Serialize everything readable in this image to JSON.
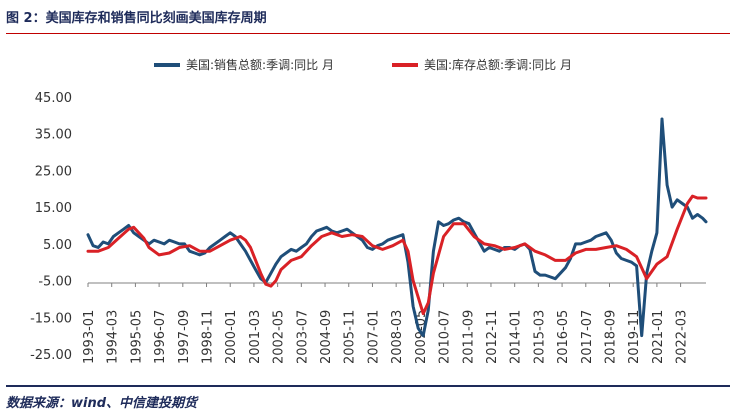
{
  "figure": {
    "title": "图 2：美国库存和销售同比刻画美国库存周期",
    "source": "数据来源：wind、中信建投期货"
  },
  "chart_data": {
    "type": "line",
    "title": "",
    "xlabel": "",
    "ylabel": "",
    "ylim": [
      -25,
      45
    ],
    "yticks": [
      45,
      35,
      25,
      15,
      5,
      -5,
      -15,
      -25
    ],
    "ytick_labels": [
      "45.00",
      "35.00",
      "25.00",
      "15.00",
      "5.00",
      "-5.00",
      "-15.00",
      "-25.00"
    ],
    "x_range": [
      "1993-01",
      "2023-06"
    ],
    "xtick_labels": [
      "1993-01",
      "1994-03",
      "1995-05",
      "1996-07",
      "1997-09",
      "1998-11",
      "2000-01",
      "2001-03",
      "2002-05",
      "2003-07",
      "2004-09",
      "2005-11",
      "2007-01",
      "2008-03",
      "2009-05",
      "2010-07",
      "2011-09",
      "2012-11",
      "2014-01",
      "2015-03",
      "2016-05",
      "2017-07",
      "2018-09",
      "2019-11",
      "2021-01",
      "2022-03"
    ],
    "legend_position": "top",
    "grid": false,
    "series": [
      {
        "name": "美国:销售总额:季调:同比 月",
        "color": "#1f4e79",
        "points": [
          [
            "1993-01",
            7.5
          ],
          [
            "1993-04",
            4.5
          ],
          [
            "1993-07",
            4.0
          ],
          [
            "1993-10",
            5.5
          ],
          [
            "1994-01",
            5.0
          ],
          [
            "1994-04",
            7.0
          ],
          [
            "1994-07",
            8.0
          ],
          [
            "1994-10",
            9.0
          ],
          [
            "1995-01",
            10.0
          ],
          [
            "1995-04",
            8.0
          ],
          [
            "1995-07",
            7.0
          ],
          [
            "1995-10",
            6.0
          ],
          [
            "1996-01",
            5.0
          ],
          [
            "1996-04",
            6.0
          ],
          [
            "1996-07",
            5.5
          ],
          [
            "1996-10",
            5.0
          ],
          [
            "1997-01",
            6.0
          ],
          [
            "1997-04",
            5.5
          ],
          [
            "1997-07",
            5.0
          ],
          [
            "1997-10",
            5.0
          ],
          [
            "1998-01",
            3.0
          ],
          [
            "1998-04",
            2.5
          ],
          [
            "1998-07",
            2.0
          ],
          [
            "1998-10",
            2.5
          ],
          [
            "1999-01",
            4.0
          ],
          [
            "1999-04",
            5.0
          ],
          [
            "1999-07",
            6.0
          ],
          [
            "1999-10",
            7.0
          ],
          [
            "2000-01",
            8.0
          ],
          [
            "2000-04",
            7.0
          ],
          [
            "2000-07",
            5.0
          ],
          [
            "2000-10",
            3.0
          ],
          [
            "2001-01",
            0.5
          ],
          [
            "2001-04",
            -2.0
          ],
          [
            "2001-07",
            -4.5
          ],
          [
            "2001-10",
            -5.5
          ],
          [
            "2002-01",
            -3.0
          ],
          [
            "2002-04",
            -0.5
          ],
          [
            "2002-07",
            1.5
          ],
          [
            "2002-10",
            2.5
          ],
          [
            "2003-01",
            3.5
          ],
          [
            "2003-04",
            3.0
          ],
          [
            "2003-07",
            4.0
          ],
          [
            "2003-10",
            5.0
          ],
          [
            "2004-01",
            7.0
          ],
          [
            "2004-04",
            8.5
          ],
          [
            "2004-07",
            9.0
          ],
          [
            "2004-10",
            9.5
          ],
          [
            "2005-01",
            8.5
          ],
          [
            "2005-04",
            8.0
          ],
          [
            "2005-07",
            8.5
          ],
          [
            "2005-10",
            9.0
          ],
          [
            "2006-01",
            8.0
          ],
          [
            "2006-04",
            7.0
          ],
          [
            "2006-07",
            6.0
          ],
          [
            "2006-10",
            4.0
          ],
          [
            "2007-01",
            3.5
          ],
          [
            "2007-04",
            4.5
          ],
          [
            "2007-07",
            5.0
          ],
          [
            "2007-10",
            6.0
          ],
          [
            "2008-01",
            6.5
          ],
          [
            "2008-04",
            7.0
          ],
          [
            "2008-07",
            7.5
          ],
          [
            "2008-10",
            0.0
          ],
          [
            "2009-01",
            -12.0
          ],
          [
            "2009-04",
            -18.0
          ],
          [
            "2009-07",
            -20.0
          ],
          [
            "2009-10",
            -13.0
          ],
          [
            "2010-01",
            3.0
          ],
          [
            "2010-04",
            11.0
          ],
          [
            "2010-07",
            10.0
          ],
          [
            "2010-10",
            10.5
          ],
          [
            "2011-01",
            11.5
          ],
          [
            "2011-04",
            12.0
          ],
          [
            "2011-07",
            11.0
          ],
          [
            "2011-10",
            10.5
          ],
          [
            "2012-01",
            8.0
          ],
          [
            "2012-04",
            5.5
          ],
          [
            "2012-07",
            3.0
          ],
          [
            "2012-10",
            4.0
          ],
          [
            "2013-01",
            3.5
          ],
          [
            "2013-04",
            3.0
          ],
          [
            "2013-07",
            4.0
          ],
          [
            "2013-10",
            4.0
          ],
          [
            "2014-01",
            3.5
          ],
          [
            "2014-04",
            4.5
          ],
          [
            "2014-07",
            5.0
          ],
          [
            "2014-10",
            3.5
          ],
          [
            "2015-01",
            -2.5
          ],
          [
            "2015-04",
            -3.5
          ],
          [
            "2015-07",
            -3.5
          ],
          [
            "2015-10",
            -4.0
          ],
          [
            "2016-01",
            -4.5
          ],
          [
            "2016-04",
            -3.0
          ],
          [
            "2016-07",
            -1.5
          ],
          [
            "2016-10",
            1.0
          ],
          [
            "2017-01",
            5.0
          ],
          [
            "2017-04",
            5.0
          ],
          [
            "2017-07",
            5.5
          ],
          [
            "2017-10",
            6.0
          ],
          [
            "2018-01",
            7.0
          ],
          [
            "2018-04",
            7.5
          ],
          [
            "2018-07",
            8.0
          ],
          [
            "2018-10",
            6.0
          ],
          [
            "2019-01",
            2.5
          ],
          [
            "2019-04",
            1.0
          ],
          [
            "2019-07",
            0.5
          ],
          [
            "2019-10",
            0.0
          ],
          [
            "2020-01",
            -1.0
          ],
          [
            "2020-04",
            -20.0
          ],
          [
            "2020-07",
            -3.0
          ],
          [
            "2020-10",
            3.0
          ],
          [
            "2021-01",
            8.0
          ],
          [
            "2021-04",
            39.0
          ],
          [
            "2021-07",
            21.0
          ],
          [
            "2021-10",
            15.0
          ],
          [
            "2022-01",
            17.0
          ],
          [
            "2022-04",
            16.0
          ],
          [
            "2022-07",
            15.0
          ],
          [
            "2022-10",
            12.0
          ],
          [
            "2023-01",
            13.0
          ],
          [
            "2023-04",
            12.0
          ],
          [
            "2023-06",
            11.0
          ]
        ]
      },
      {
        "name": "美国:库存总额:季调:同比 月",
        "color": "#d92126",
        "points": [
          [
            "1993-01",
            3.0
          ],
          [
            "1993-07",
            3.0
          ],
          [
            "1994-01",
            4.0
          ],
          [
            "1994-07",
            6.5
          ],
          [
            "1995-01",
            9.0
          ],
          [
            "1995-04",
            9.5
          ],
          [
            "1995-07",
            8.0
          ],
          [
            "1995-10",
            6.5
          ],
          [
            "1996-01",
            4.0
          ],
          [
            "1996-07",
            2.0
          ],
          [
            "1997-01",
            2.5
          ],
          [
            "1997-07",
            4.0
          ],
          [
            "1998-01",
            4.5
          ],
          [
            "1998-07",
            3.0
          ],
          [
            "1999-01",
            3.0
          ],
          [
            "1999-07",
            4.5
          ],
          [
            "2000-01",
            6.0
          ],
          [
            "2000-07",
            7.0
          ],
          [
            "2000-10",
            6.0
          ],
          [
            "2001-01",
            4.0
          ],
          [
            "2001-07",
            -3.0
          ],
          [
            "2001-10",
            -6.0
          ],
          [
            "2002-01",
            -6.5
          ],
          [
            "2002-04",
            -5.0
          ],
          [
            "2002-07",
            -2.0
          ],
          [
            "2003-01",
            0.5
          ],
          [
            "2003-07",
            1.5
          ],
          [
            "2004-01",
            4.5
          ],
          [
            "2004-07",
            7.0
          ],
          [
            "2005-01",
            8.0
          ],
          [
            "2005-07",
            7.0
          ],
          [
            "2006-01",
            7.5
          ],
          [
            "2006-07",
            7.0
          ],
          [
            "2007-01",
            4.5
          ],
          [
            "2007-07",
            3.5
          ],
          [
            "2008-01",
            4.5
          ],
          [
            "2008-07",
            6.0
          ],
          [
            "2008-10",
            3.0
          ],
          [
            "2009-01",
            -5.0
          ],
          [
            "2009-07",
            -14.0
          ],
          [
            "2009-10",
            -11.0
          ],
          [
            "2010-01",
            -3.0
          ],
          [
            "2010-07",
            7.0
          ],
          [
            "2011-01",
            10.5
          ],
          [
            "2011-07",
            10.5
          ],
          [
            "2012-01",
            7.0
          ],
          [
            "2012-07",
            5.0
          ],
          [
            "2013-01",
            4.5
          ],
          [
            "2013-07",
            3.5
          ],
          [
            "2014-01",
            4.0
          ],
          [
            "2014-07",
            5.0
          ],
          [
            "2015-01",
            3.0
          ],
          [
            "2015-07",
            2.0
          ],
          [
            "2016-01",
            0.5
          ],
          [
            "2016-07",
            0.5
          ],
          [
            "2017-01",
            2.5
          ],
          [
            "2017-07",
            3.5
          ],
          [
            "2018-01",
            3.5
          ],
          [
            "2018-07",
            4.0
          ],
          [
            "2019-01",
            4.5
          ],
          [
            "2019-07",
            3.5
          ],
          [
            "2020-01",
            1.5
          ],
          [
            "2020-07",
            -4.5
          ],
          [
            "2020-10",
            -2.5
          ],
          [
            "2021-01",
            -0.5
          ],
          [
            "2021-07",
            1.5
          ],
          [
            "2022-01",
            9.0
          ],
          [
            "2022-07",
            16.0
          ],
          [
            "2022-10",
            18.0
          ],
          [
            "2023-01",
            17.5
          ],
          [
            "2023-06",
            17.5
          ]
        ]
      }
    ]
  }
}
